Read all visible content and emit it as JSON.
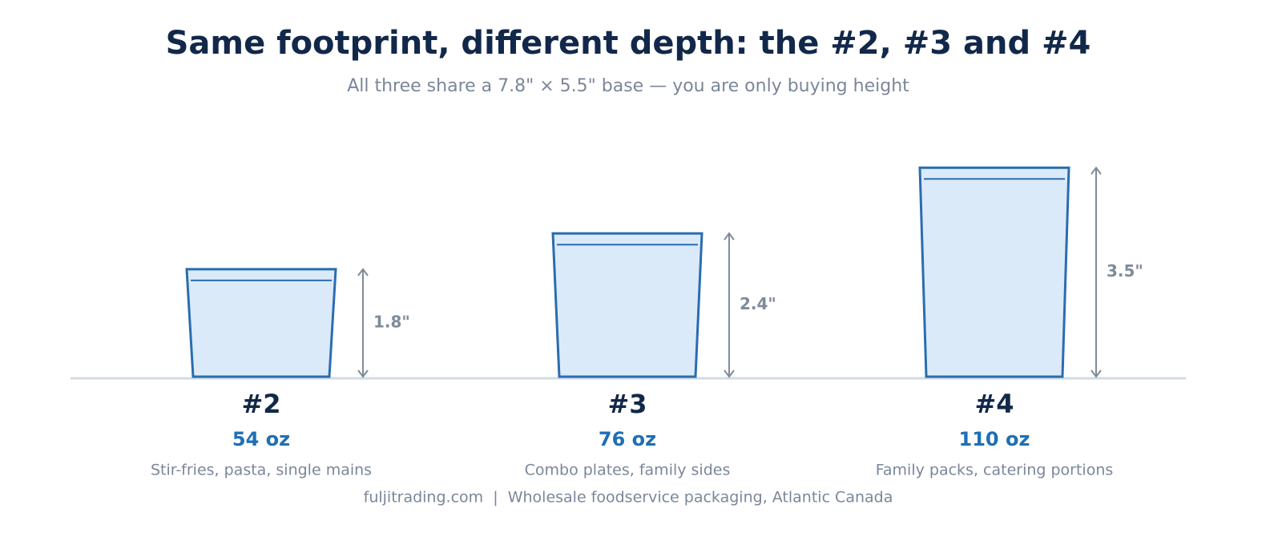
{
  "chart_data": {
    "type": "container",
    "title": "Same footprint, different depth: the #2, #3 and #4",
    "subtitle": "All three share a 7.8\" × 5.5\" base — you are only buying height",
    "categories": [
      "#2",
      "#3",
      "#4"
    ],
    "values": [
      1.8,
      2.4,
      3.5
    ],
    "value_labels": [
      "1.8\"",
      "2.4\"",
      "3.5\""
    ],
    "capacities": [
      "54 oz",
      "76 oz",
      "110 oz"
    ],
    "descriptions": [
      "Stir-fries, pasta, single mains",
      "Combo plates, family sides",
      "Family packs, catering portions"
    ],
    "color": "#dbeaf9",
    "footer": "fuljitrading.com  |  Wholesale foodservice packaging, Atlantic Canada"
  }
}
